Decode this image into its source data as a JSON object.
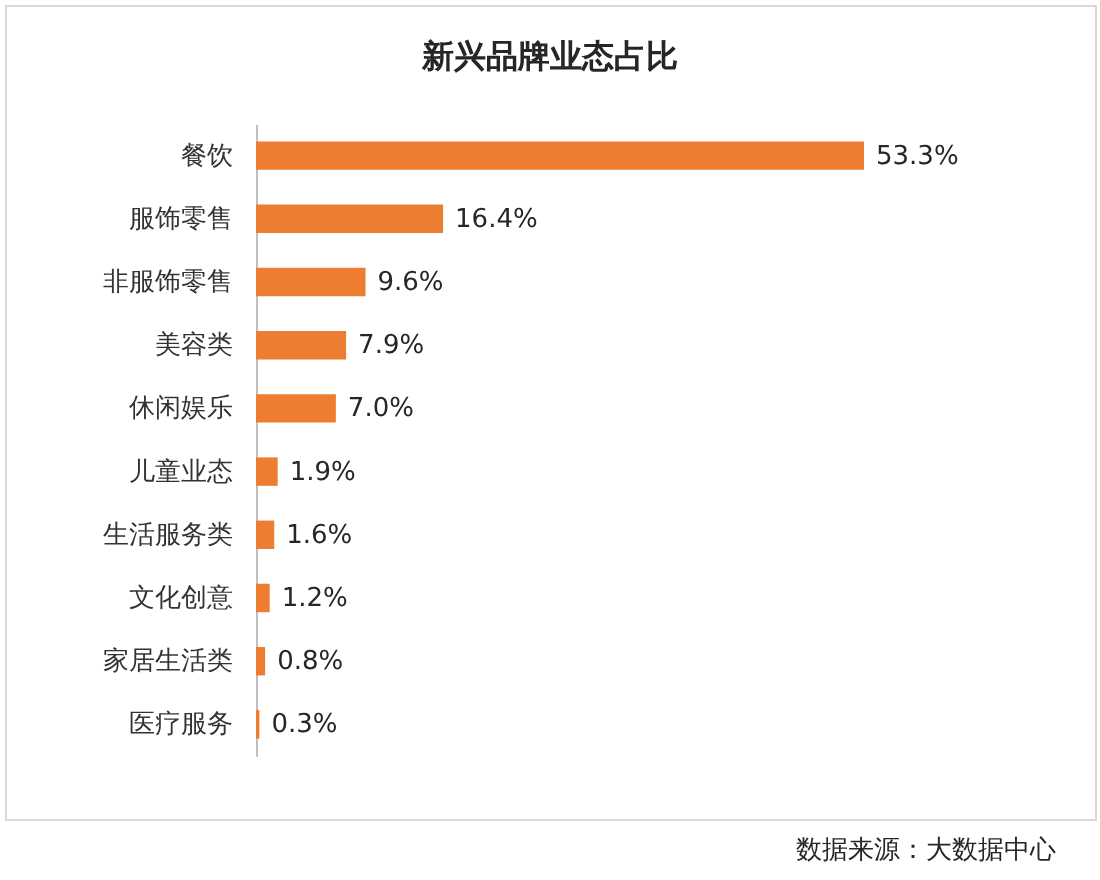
{
  "chart_data": {
    "type": "bar",
    "orientation": "horizontal",
    "title": "新兴品牌业态占比",
    "categories": [
      "餐饮",
      "服饰零售",
      "非服饰零售",
      "美容类",
      "休闲娱乐",
      "儿童业态",
      "生活服务类",
      "文化创意",
      "家居生活类",
      "医疗服务"
    ],
    "values": [
      53.3,
      16.4,
      9.6,
      7.9,
      7.0,
      1.9,
      1.6,
      1.2,
      0.8,
      0.3
    ],
    "value_labels": [
      "53.3%",
      "16.4%",
      "9.6%",
      "7.9%",
      "7.0%",
      "1.9%",
      "1.6%",
      "1.2%",
      "0.8%",
      "0.3%"
    ],
    "color": "#ed7d31",
    "tick_labels": "y",
    "annotations": [
      "数据来源：大数据中心"
    ]
  }
}
